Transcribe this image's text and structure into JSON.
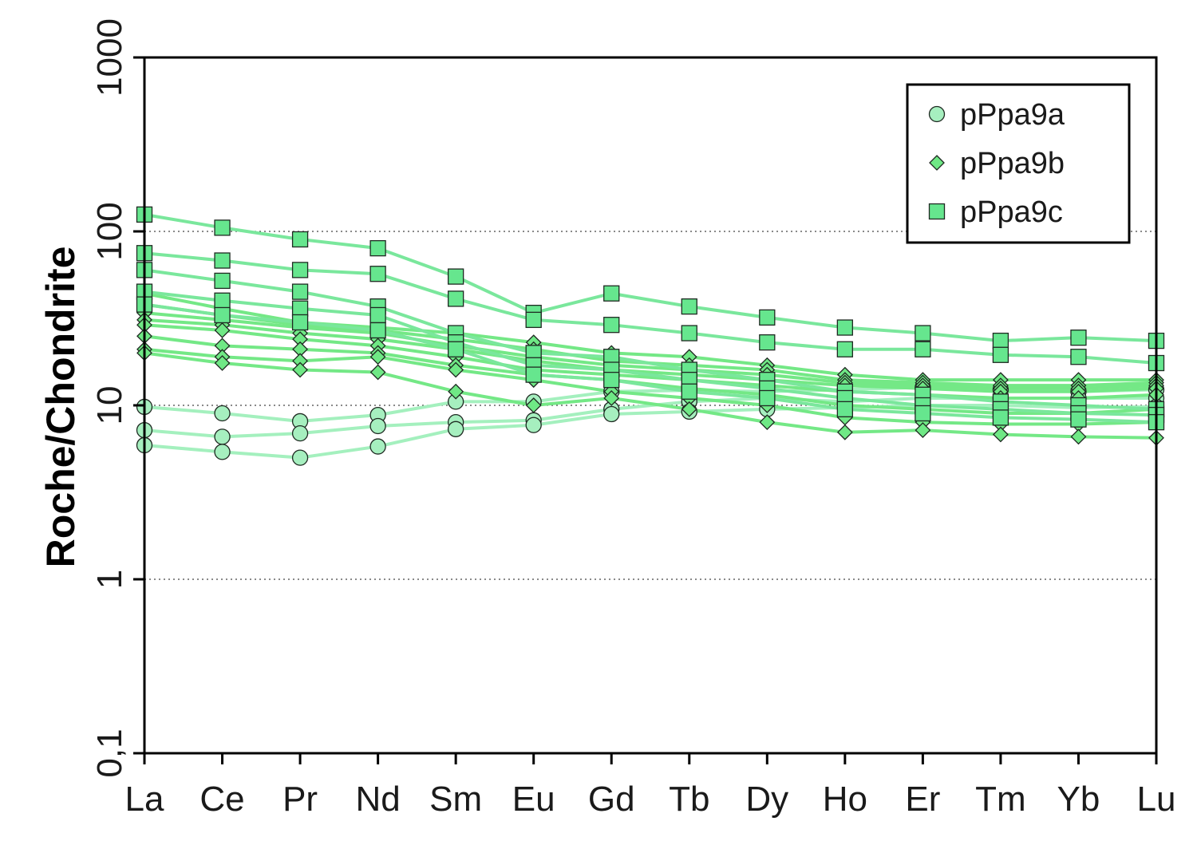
{
  "chart_data": {
    "type": "line",
    "yscale": "log",
    "title": "",
    "xlabel": "",
    "ylabel": "Roche/Chondrite",
    "ylim": [
      0.1,
      1000
    ],
    "yticks": [
      {
        "value": 0.1,
        "label": "0,1"
      },
      {
        "value": 1,
        "label": "1"
      },
      {
        "value": 10,
        "label": "10"
      },
      {
        "value": 100,
        "label": "100"
      },
      {
        "value": 1000,
        "label": "1000"
      }
    ],
    "gridlines": [
      1,
      10,
      100
    ],
    "categories": [
      "La",
      "Ce",
      "Pr",
      "Nd",
      "Sm",
      "Eu",
      "Gd",
      "Tb",
      "Dy",
      "Ho",
      "Er",
      "Tm",
      "Yb",
      "Lu"
    ],
    "legend_position": "top-right",
    "groups": [
      {
        "name": "pPpa9a",
        "marker": "circle",
        "line_color": "#a4f0be",
        "marker_fill": "#a6efbf"
      },
      {
        "name": "pPpa9b",
        "marker": "diamond",
        "line_color": "#74e886",
        "marker_fill": "#6fe885"
      },
      {
        "name": "pPpa9c",
        "marker": "square",
        "line_color": "#7ae79c",
        "marker_fill": "#66e68e"
      }
    ],
    "series": [
      {
        "group": "pPpa9a",
        "values": [
          9.8,
          9.0,
          8.1,
          8.8,
          10.5,
          10.5,
          12.0,
          12.2,
          12.0,
          12.3,
          12.7,
          12.3,
          12.0,
          12.3
        ]
      },
      {
        "group": "pPpa9a",
        "values": [
          7.2,
          6.6,
          6.9,
          7.6,
          8.0,
          8.2,
          9.5,
          10.5,
          11.0,
          10.5,
          11.0,
          11.0,
          11.0,
          11.0
        ]
      },
      {
        "group": "pPpa9a",
        "values": [
          5.9,
          5.4,
          5.0,
          5.8,
          7.3,
          7.7,
          8.9,
          9.2,
          9.5,
          9.7,
          10.0,
          10.0,
          9.7,
          9.8
        ]
      },
      {
        "group": "pPpa9b",
        "values": [
          44,
          36,
          30,
          28,
          26,
          23,
          20,
          19,
          17,
          15,
          14,
          14,
          14,
          14
        ]
      },
      {
        "group": "pPpa9b",
        "values": [
          38,
          33,
          29,
          27,
          24,
          21,
          18,
          17,
          16,
          14,
          13.5,
          13,
          13,
          13.5
        ]
      },
      {
        "group": "pPpa9b",
        "values": [
          34,
          31,
          28,
          26,
          22,
          19,
          17,
          16,
          15,
          13.5,
          13,
          12.5,
          12.5,
          13
        ]
      },
      {
        "group": "pPpa9b",
        "values": [
          31,
          29,
          26,
          24,
          21,
          18,
          16,
          15,
          14,
          13,
          12.5,
          12,
          12,
          12.5
        ]
      },
      {
        "group": "pPpa9b",
        "values": [
          29,
          27,
          24,
          22,
          19,
          16,
          15,
          14,
          13,
          12,
          11.5,
          11,
          11,
          11.5
        ]
      },
      {
        "group": "pPpa9b",
        "values": [
          25,
          22,
          21,
          20,
          17,
          15,
          14,
          12.5,
          11.5,
          10,
          9.5,
          9,
          9,
          9.5
        ]
      },
      {
        "group": "pPpa9b",
        "values": [
          21,
          19,
          18,
          19,
          16,
          14,
          12,
          11,
          10,
          8.5,
          8,
          7.8,
          7.8,
          8
        ]
      },
      {
        "group": "pPpa9b",
        "values": [
          20,
          17.5,
          16,
          15.5,
          12,
          10,
          11,
          9.5,
          8,
          7,
          7.2,
          6.8,
          6.6,
          6.5
        ]
      },
      {
        "group": "pPpa9c",
        "values": [
          125,
          105,
          90,
          80,
          55,
          34,
          44,
          37,
          32,
          28,
          26,
          23.5,
          24.5,
          23.5
        ]
      },
      {
        "group": "pPpa9c",
        "values": [
          75,
          68,
          60,
          57,
          41,
          31,
          29,
          26,
          23,
          21,
          21,
          19.5,
          19,
          17.5
        ]
      },
      {
        "group": "pPpa9c",
        "values": [
          60,
          52,
          45,
          37,
          26,
          20,
          19,
          16,
          14,
          12,
          11.5,
          10.5,
          10,
          9.5
        ]
      },
      {
        "group": "pPpa9c",
        "values": [
          45,
          40,
          36,
          33,
          23,
          17,
          16,
          14,
          12.5,
          11,
          10,
          9.5,
          9,
          8.8
        ]
      },
      {
        "group": "pPpa9c",
        "values": [
          38,
          33,
          30,
          27,
          21,
          15,
          14,
          12,
          11,
          9.5,
          9,
          8.5,
          8.3,
          8
        ]
      }
    ]
  }
}
